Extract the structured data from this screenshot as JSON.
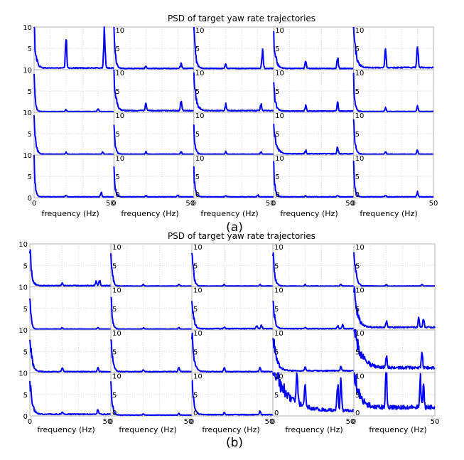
{
  "chart_data": [
    {
      "type": "line",
      "id": "a",
      "title": "PSD of target yaw rate trajectories",
      "sublabel": "(a)",
      "rows": 4,
      "cols": 5,
      "xlabel": "frequency (Hz)",
      "xlim": [
        0,
        50
      ],
      "ylim": [
        0,
        10
      ],
      "xticks": [
        "0",
        "50"
      ],
      "yticks": [
        "0",
        "5",
        "10"
      ],
      "grid": "on",
      "series_color": "#0000ff",
      "panels": [
        {
          "decay": 9.5,
          "k": 0.9,
          "floor": 0.4,
          "peaks": [
            [
              20,
              6.5
            ],
            [
              44,
              10
            ]
          ]
        },
        {
          "decay": 10,
          "k": 1.2,
          "floor": 0.3,
          "peaks": [
            [
              20,
              0.5
            ],
            [
              42,
              1
            ]
          ]
        },
        {
          "decay": 10,
          "k": 1.0,
          "floor": 0.3,
          "peaks": [
            [
              20,
              1
            ],
            [
              43,
              4.5
            ]
          ]
        },
        {
          "decay": 8,
          "k": 0.8,
          "floor": 0.3,
          "peaks": [
            [
              20,
              1.5
            ],
            [
              40,
              2.5
            ]
          ]
        },
        {
          "decay": 10,
          "k": 0.7,
          "floor": 0.5,
          "peaks": [
            [
              20,
              4
            ],
            [
              40,
              6
            ]
          ]
        },
        {
          "decay": 8,
          "k": 1.5,
          "floor": 0.2,
          "peaks": [
            [
              20,
              0.4
            ],
            [
              40,
              0.8
            ]
          ]
        },
        {
          "decay": 9,
          "k": 0.8,
          "floor": 0.4,
          "peaks": [
            [
              20,
              1.5
            ],
            [
              42,
              2
            ]
          ]
        },
        {
          "decay": 8,
          "k": 0.7,
          "floor": 0.4,
          "peaks": [
            [
              20,
              1.5
            ],
            [
              42,
              1.5
            ]
          ]
        },
        {
          "decay": 6,
          "k": 0.9,
          "floor": 0.3,
          "peaks": [
            [
              20,
              1.2
            ],
            [
              40,
              1.8
            ]
          ]
        },
        {
          "decay": 8,
          "k": 1.3,
          "floor": 0.2,
          "peaks": [
            [
              20,
              0.8
            ],
            [
              40,
              1.2
            ]
          ]
        },
        {
          "decay": 8,
          "k": 1.0,
          "floor": 0.2,
          "peaks": [
            [
              20,
              0.4
            ],
            [
              43,
              0.5
            ]
          ]
        },
        {
          "decay": 6,
          "k": 1.2,
          "floor": 0.2,
          "peaks": [
            [
              20,
              0.5
            ],
            [
              42,
              0.5
            ]
          ]
        },
        {
          "decay": 6,
          "k": 1.2,
          "floor": 0.2,
          "peaks": [
            [
              20,
              0.5
            ],
            [
              42,
              0.5
            ]
          ]
        },
        {
          "decay": 6,
          "k": 0.6,
          "floor": 0.3,
          "peaks": [
            [
              20,
              0.8
            ],
            [
              40,
              1.5
            ]
          ]
        },
        {
          "decay": 7,
          "k": 1.0,
          "floor": 0.2,
          "peaks": [
            [
              20,
              0.6
            ],
            [
              40,
              1
            ]
          ]
        },
        {
          "decay": 9,
          "k": 1.4,
          "floor": 0.2,
          "peaks": [
            [
              20,
              0.4
            ],
            [
              42,
              1
            ]
          ]
        },
        {
          "decay": 6,
          "k": 1.2,
          "floor": 0.2,
          "peaks": [
            [
              20,
              0.3
            ],
            [
              40,
              0.4
            ]
          ]
        },
        {
          "decay": 6,
          "k": 1.2,
          "floor": 0.2,
          "peaks": [
            [
              20,
              0.3
            ],
            [
              40,
              0.4
            ]
          ]
        },
        {
          "decay": 7,
          "k": 1.2,
          "floor": 0.2,
          "peaks": [
            [
              20,
              0.3
            ],
            [
              40,
              0.4
            ]
          ]
        },
        {
          "decay": 7,
          "k": 1.2,
          "floor": 0.2,
          "peaks": [
            [
              20,
              0.3
            ],
            [
              40,
              1
            ]
          ]
        }
      ]
    },
    {
      "type": "line",
      "id": "b",
      "title": "PSD of target yaw rate trajectories",
      "sublabel": "(b)",
      "rows": 4,
      "cols": 5,
      "xlabel": "frequency (Hz)",
      "xlim": [
        0,
        50
      ],
      "ylim": [
        0,
        10
      ],
      "xticks": [
        "0",
        "50"
      ],
      "yticks": [
        "0",
        "5",
        "10"
      ],
      "grid": "on",
      "series_color": "#0000ff",
      "panels": [
        {
          "decay": 10,
          "k": 1.0,
          "floor": 0.3,
          "peaks": [
            [
              20,
              0.5
            ],
            [
              41,
              1.2
            ],
            [
              43,
              1.2
            ]
          ]
        },
        {
          "decay": 10,
          "k": 1.2,
          "floor": 0.2,
          "peaks": [
            [
              20,
              0.3
            ],
            [
              42,
              0.4
            ]
          ]
        },
        {
          "decay": 10,
          "k": 1.1,
          "floor": 0.2,
          "peaks": [
            [
              20,
              0.3
            ],
            [
              42,
              0.4
            ]
          ]
        },
        {
          "decay": 9,
          "k": 1.0,
          "floor": 0.2,
          "peaks": [
            [
              20,
              0.3
            ],
            [
              42,
              0.4
            ]
          ]
        },
        {
          "decay": 10,
          "k": 0.9,
          "floor": 0.2,
          "peaks": [
            [
              20,
              0.3
            ],
            [
              42,
              0.4
            ]
          ]
        },
        {
          "decay": 9,
          "k": 1.5,
          "floor": 0.2,
          "peaks": [
            [
              20,
              0.3
            ],
            [
              42,
              0.4
            ]
          ]
        },
        {
          "decay": 9,
          "k": 1.3,
          "floor": 0.2,
          "peaks": [
            [
              20,
              0.3
            ],
            [
              42,
              0.4
            ]
          ]
        },
        {
          "decay": 8,
          "k": 1.0,
          "floor": 0.3,
          "peaks": [
            [
              20,
              0.4
            ],
            [
              40,
              0.8
            ],
            [
              43,
              0.8
            ]
          ]
        },
        {
          "decay": 8,
          "k": 1.0,
          "floor": 0.3,
          "peaks": [
            [
              20,
              0.4
            ],
            [
              40,
              0.8
            ],
            [
              43,
              0.8
            ]
          ]
        },
        {
          "decay": 10,
          "k": 0.5,
          "floor": 0.6,
          "peaks": [
            [
              20,
              1.5
            ],
            [
              40,
              1.8
            ],
            [
              43,
              1.8
            ]
          ]
        },
        {
          "decay": 9,
          "k": 0.8,
          "floor": 0.3,
          "peaks": [
            [
              20,
              1
            ],
            [
              42,
              1
            ]
          ]
        },
        {
          "decay": 9,
          "k": 1.0,
          "floor": 0.3,
          "peaks": [
            [
              20,
              0.5
            ],
            [
              42,
              1
            ]
          ]
        },
        {
          "decay": 9,
          "k": 0.8,
          "floor": 0.3,
          "peaks": [
            [
              20,
              1
            ],
            [
              42,
              1
            ]
          ]
        },
        {
          "decay": 9,
          "k": 0.5,
          "floor": 0.5,
          "peaks": [
            [
              20,
              1
            ],
            [
              42,
              1
            ]
          ]
        },
        {
          "decay": 10,
          "k": 0.25,
          "floor": 1.2,
          "peaks": [
            [
              20,
              2.5
            ],
            [
              42,
              3.5
            ]
          ]
        },
        {
          "decay": 9,
          "k": 0.8,
          "floor": 0.4,
          "peaks": [
            [
              20,
              0.5
            ],
            [
              42,
              1
            ]
          ]
        },
        {
          "decay": 9,
          "k": 1.2,
          "floor": 0.2,
          "peaks": [
            [
              20,
              0.3
            ],
            [
              42,
              0.4
            ]
          ]
        },
        {
          "decay": 9,
          "k": 0.9,
          "floor": 0.3,
          "peaks": [
            [
              20,
              0.5
            ],
            [
              42,
              0.8
            ]
          ]
        },
        {
          "decay": 11,
          "k": 0.12,
          "floor": 1.2,
          "peaks": [
            [
              15,
              8
            ],
            [
              20,
              5
            ],
            [
              40,
              6
            ],
            [
              42,
              7
            ]
          ]
        },
        {
          "decay": 9,
          "k": 0.3,
          "floor": 2.0,
          "peaks": [
            [
              20,
              9
            ],
            [
              41,
              8
            ],
            [
              43,
              6
            ]
          ]
        }
      ]
    }
  ]
}
